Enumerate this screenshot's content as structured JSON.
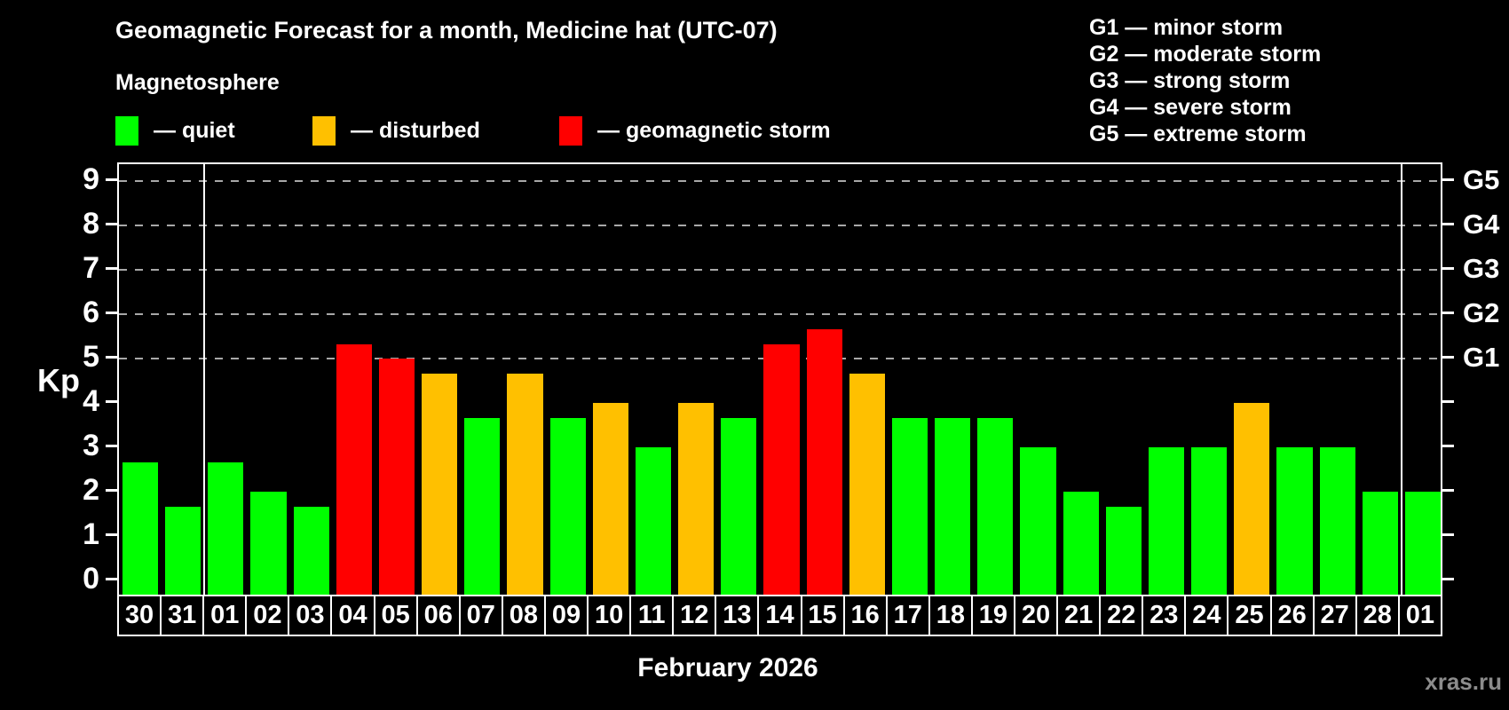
{
  "header": {
    "title": "Geomagnetic Forecast for a month, Medicine hat (UTC-07)",
    "subtitle": "Magnetosphere"
  },
  "legend": {
    "quiet_label": "— quiet",
    "disturbed_label": "— disturbed",
    "storm_label": "— geomagnetic storm"
  },
  "g_legend": [
    "G1 — minor storm",
    "G2 — moderate storm",
    "G3 — strong storm",
    "G4 — severe storm",
    "G5 — extreme storm"
  ],
  "colors": {
    "quiet": "#00ff00",
    "disturbed": "#ffc000",
    "storm": "#ff0000",
    "grid": "#a8a8a8",
    "axis": "#ffffff",
    "watermark": "#8c8c8c"
  },
  "watermark": "xras.ru",
  "chart_data": {
    "type": "bar",
    "title": "Geomagnetic Forecast for a month, Medicine hat (UTC-07)",
    "xlabel": "February 2026",
    "ylabel": "Kp",
    "ylim": [
      0,
      9
    ],
    "grid": "dashed horizontal lines at Kp 5-9 only",
    "legend_position": "top",
    "y_ticks": [
      0,
      1,
      2,
      3,
      4,
      5,
      6,
      7,
      8,
      9
    ],
    "right_axis_levels": [
      {
        "kp": 5,
        "label": "G1"
      },
      {
        "kp": 6,
        "label": "G2"
      },
      {
        "kp": 7,
        "label": "G3"
      },
      {
        "kp": 8,
        "label": "G4"
      },
      {
        "kp": 9,
        "label": "G5"
      }
    ],
    "categories": [
      "30",
      "31",
      "01",
      "02",
      "03",
      "04",
      "05",
      "06",
      "07",
      "08",
      "09",
      "10",
      "11",
      "12",
      "13",
      "14",
      "15",
      "16",
      "17",
      "18",
      "19",
      "20",
      "21",
      "22",
      "23",
      "24",
      "25",
      "26",
      "27",
      "28",
      "01"
    ],
    "values": [
      2.67,
      1.67,
      2.67,
      2.0,
      1.67,
      5.33,
      5.0,
      4.67,
      3.67,
      4.67,
      3.67,
      4.0,
      3.0,
      4.0,
      3.67,
      5.33,
      5.67,
      4.67,
      3.67,
      3.67,
      3.67,
      3.0,
      2.0,
      1.67,
      3.0,
      3.0,
      4.0,
      3.0,
      3.0,
      2.0,
      2.0
    ],
    "statuses": [
      "quiet",
      "quiet",
      "quiet",
      "quiet",
      "quiet",
      "storm",
      "storm",
      "disturbed",
      "quiet",
      "disturbed",
      "quiet",
      "disturbed",
      "quiet",
      "disturbed",
      "quiet",
      "storm",
      "storm",
      "disturbed",
      "quiet",
      "quiet",
      "quiet",
      "quiet",
      "quiet",
      "quiet",
      "quiet",
      "quiet",
      "disturbed",
      "quiet",
      "quiet",
      "quiet",
      "quiet"
    ],
    "month_dividers_at_column": [
      2,
      30
    ]
  }
}
